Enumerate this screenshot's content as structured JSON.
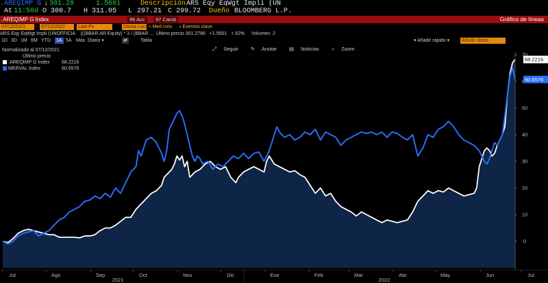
{
  "header": {
    "ticker_left": ".AREQIMP G",
    "price_arrow": "↓",
    "price": "301.28",
    "change": "1.5601",
    "desc_label": "Descripción",
    "desc_value": "ARS Eqy EqWgt Impli (UN",
    "at_label": "At",
    "at_time": "11:50d",
    "o_label": "O",
    "o_value": "300.7",
    "h_label": "H",
    "h_value": "311.05",
    "l_label": "L",
    "l_value": "297.21",
    "c_label": "C",
    "c_value": "299.72",
    "owner_label": "Dueño",
    "owner_value": "BLOOMBERG L.P."
  },
  "security_bar": {
    "security": ".AREQIMP G Index",
    "btn1": "96 Acc",
    "btn2": "97 Camb",
    "title": "Gráfico de líneas"
  },
  "fields_row": {
    "start_date": "07/12/2021",
    "end_date": "07/12/2022",
    "last_px": "Last Px",
    "currency": "Divisa Local",
    "med_mov": "Med móv",
    "events": "Eventos clave"
  },
  "info_row": {
    "text": "ARS Eqy EqWgt Impli (UNOFFICIA    (((BBAR AR Equity) * 3 / (BBAR ...  Último precio 301.2786   +1.5601   +.52%     Volumen  2"
  },
  "period_row": {
    "periods": [
      "1D",
      "3D",
      "1M",
      "6M",
      "YTD",
      "1A",
      "5A",
      "Máx",
      "Diario"
    ],
    "active": "1A",
    "tabla": "Tabla",
    "add_quick": "Añadir rápido",
    "add_data": "Añadir datos"
  },
  "toolbar": {
    "follow": "Seguir",
    "annotate": "Anotar",
    "news": "Noticias",
    "zoom": "Zoom"
  },
  "legend": {
    "normalized": "Normalizado al 07/12/2021",
    "last_price": "Último precio",
    "items": [
      {
        "name": ".AREQIMP G Index",
        "value": "68.2216",
        "color": "#ffffff"
      },
      {
        "name": "MERVAL Index",
        "value": "60.6576",
        "color": "#2a6cf6"
      }
    ]
  },
  "colors": {
    "accent_orange": "#e48a0c",
    "bar_red": "#9b0d0d",
    "series_white": "#ffffff",
    "series_blue": "#2a6cf6",
    "area_fill": "#0e2547"
  },
  "chart_data": {
    "type": "line",
    "ylim": [
      -10,
      70
    ],
    "yticks": [
      0,
      10,
      20,
      30,
      40,
      50,
      60,
      70
    ],
    "xlim": [
      0,
      1
    ],
    "month_labels": [
      {
        "label": "Jul",
        "x": 0.0
      },
      {
        "label": "Ago",
        "x": 0.085
      },
      {
        "label": "Sep",
        "x": 0.172
      },
      {
        "label": "Oct",
        "x": 0.255
      },
      {
        "label": "Nov",
        "x": 0.342
      },
      {
        "label": "Dic",
        "x": 0.426
      },
      {
        "label": "Ene",
        "x": 0.512
      },
      {
        "label": "Feb",
        "x": 0.598
      },
      {
        "label": "Mar",
        "x": 0.676
      },
      {
        "label": "Abr",
        "x": 0.762
      },
      {
        "label": "May",
        "x": 0.845
      },
      {
        "label": "Jun",
        "x": 0.932
      },
      {
        "label": "Jul",
        "x": 1.012
      }
    ],
    "year_labels": [
      {
        "label": "2021",
        "x": 0.23
      },
      {
        "label": "2022",
        "x": 0.75
      }
    ],
    "series": [
      {
        "name": ".AREQIMP G Index",
        "color": "#ffffff",
        "area": true,
        "last_value": "68.2216",
        "points": [
          [
            0.0,
            0
          ],
          [
            0.01,
            -0.5
          ],
          [
            0.02,
            1
          ],
          [
            0.03,
            3
          ],
          [
            0.04,
            4
          ],
          [
            0.05,
            4.5
          ],
          [
            0.06,
            4
          ],
          [
            0.07,
            3.5
          ],
          [
            0.08,
            3
          ],
          [
            0.09,
            2.5
          ],
          [
            0.1,
            2.5
          ],
          [
            0.11,
            1.5
          ],
          [
            0.12,
            1.5
          ],
          [
            0.13,
            1.5
          ],
          [
            0.14,
            1.5
          ],
          [
            0.15,
            1.3
          ],
          [
            0.16,
            2
          ],
          [
            0.17,
            2
          ],
          [
            0.18,
            2.5
          ],
          [
            0.19,
            4
          ],
          [
            0.2,
            5
          ],
          [
            0.21,
            5
          ],
          [
            0.22,
            6
          ],
          [
            0.23,
            7.5
          ],
          [
            0.24,
            9
          ],
          [
            0.25,
            9
          ],
          [
            0.26,
            12
          ],
          [
            0.27,
            14
          ],
          [
            0.28,
            16
          ],
          [
            0.29,
            18
          ],
          [
            0.3,
            19
          ],
          [
            0.31,
            21
          ],
          [
            0.315,
            24
          ],
          [
            0.32,
            25
          ],
          [
            0.325,
            26
          ],
          [
            0.33,
            27
          ],
          [
            0.335,
            29
          ],
          [
            0.34,
            32
          ],
          [
            0.345,
            30.5
          ],
          [
            0.35,
            32
          ],
          [
            0.355,
            28
          ],
          [
            0.36,
            30
          ],
          [
            0.365,
            24
          ],
          [
            0.37,
            25
          ],
          [
            0.375,
            26
          ],
          [
            0.385,
            27
          ],
          [
            0.395,
            29
          ],
          [
            0.405,
            30
          ],
          [
            0.415,
            28
          ],
          [
            0.425,
            27
          ],
          [
            0.435,
            28
          ],
          [
            0.445,
            24
          ],
          [
            0.455,
            22
          ],
          [
            0.46,
            24
          ],
          [
            0.47,
            26
          ],
          [
            0.48,
            27
          ],
          [
            0.49,
            28
          ],
          [
            0.5,
            27
          ],
          [
            0.51,
            26
          ],
          [
            0.515,
            30
          ],
          [
            0.52,
            32
          ],
          [
            0.53,
            29
          ],
          [
            0.54,
            28
          ],
          [
            0.55,
            27
          ],
          [
            0.56,
            26
          ],
          [
            0.57,
            26.5
          ],
          [
            0.58,
            25
          ],
          [
            0.59,
            24
          ],
          [
            0.6,
            21
          ],
          [
            0.61,
            18
          ],
          [
            0.62,
            20
          ],
          [
            0.63,
            17
          ],
          [
            0.64,
            18
          ],
          [
            0.65,
            15
          ],
          [
            0.66,
            13
          ],
          [
            0.67,
            12
          ],
          [
            0.68,
            11
          ],
          [
            0.69,
            9.5
          ],
          [
            0.7,
            11
          ],
          [
            0.71,
            10
          ],
          [
            0.72,
            9
          ],
          [
            0.73,
            8
          ],
          [
            0.74,
            7
          ],
          [
            0.75,
            8
          ],
          [
            0.76,
            7.5
          ],
          [
            0.77,
            7
          ],
          [
            0.78,
            7.5
          ],
          [
            0.79,
            8
          ],
          [
            0.8,
            11
          ],
          [
            0.81,
            15
          ],
          [
            0.82,
            17
          ],
          [
            0.83,
            19
          ],
          [
            0.84,
            18
          ],
          [
            0.85,
            19
          ],
          [
            0.86,
            18.5
          ],
          [
            0.87,
            20
          ],
          [
            0.88,
            19
          ],
          [
            0.89,
            18
          ],
          [
            0.9,
            17
          ],
          [
            0.91,
            17.5
          ],
          [
            0.92,
            18
          ],
          [
            0.925,
            20
          ],
          [
            0.93,
            28
          ],
          [
            0.935,
            31
          ],
          [
            0.94,
            34
          ],
          [
            0.945,
            35
          ],
          [
            0.95,
            34
          ],
          [
            0.955,
            32
          ],
          [
            0.96,
            33
          ],
          [
            0.965,
            36
          ],
          [
            0.97,
            38
          ],
          [
            0.975,
            40
          ],
          [
            0.98,
            43
          ],
          [
            0.985,
            55
          ],
          [
            0.99,
            63
          ],
          [
            0.995,
            67
          ],
          [
            1.0,
            68.2
          ]
        ]
      },
      {
        "name": "MERVAL Index",
        "color": "#2a6cf6",
        "area": false,
        "last_value": "60.6576",
        "points": [
          [
            0.0,
            0
          ],
          [
            0.01,
            -1
          ],
          [
            0.02,
            0
          ],
          [
            0.03,
            2
          ],
          [
            0.04,
            3
          ],
          [
            0.05,
            3.5
          ],
          [
            0.06,
            4
          ],
          [
            0.07,
            2
          ],
          [
            0.08,
            3
          ],
          [
            0.09,
            4
          ],
          [
            0.1,
            6
          ],
          [
            0.11,
            8
          ],
          [
            0.12,
            9
          ],
          [
            0.13,
            11
          ],
          [
            0.14,
            12
          ],
          [
            0.15,
            13
          ],
          [
            0.16,
            15
          ],
          [
            0.17,
            15.5
          ],
          [
            0.18,
            17
          ],
          [
            0.19,
            16
          ],
          [
            0.2,
            18
          ],
          [
            0.21,
            16.5
          ],
          [
            0.22,
            20
          ],
          [
            0.23,
            18
          ],
          [
            0.24,
            22
          ],
          [
            0.25,
            26
          ],
          [
            0.26,
            28
          ],
          [
            0.265,
            34
          ],
          [
            0.27,
            32
          ],
          [
            0.28,
            38
          ],
          [
            0.29,
            39
          ],
          [
            0.3,
            37
          ],
          [
            0.31,
            33
          ],
          [
            0.315,
            30
          ],
          [
            0.32,
            34
          ],
          [
            0.325,
            42
          ],
          [
            0.33,
            44
          ],
          [
            0.335,
            46
          ],
          [
            0.34,
            48
          ],
          [
            0.345,
            49
          ],
          [
            0.35,
            47
          ],
          [
            0.355,
            44
          ],
          [
            0.36,
            40
          ],
          [
            0.365,
            36
          ],
          [
            0.37,
            32
          ],
          [
            0.375,
            30
          ],
          [
            0.38,
            32
          ],
          [
            0.385,
            31
          ],
          [
            0.39,
            29
          ],
          [
            0.4,
            30
          ],
          [
            0.41,
            27
          ],
          [
            0.42,
            29
          ],
          [
            0.43,
            28
          ],
          [
            0.44,
            30
          ],
          [
            0.45,
            32
          ],
          [
            0.46,
            31
          ],
          [
            0.47,
            33
          ],
          [
            0.48,
            31
          ],
          [
            0.49,
            33
          ],
          [
            0.5,
            33.5
          ],
          [
            0.51,
            30
          ],
          [
            0.52,
            34
          ],
          [
            0.53,
            40
          ],
          [
            0.535,
            43
          ],
          [
            0.54,
            41
          ],
          [
            0.55,
            39
          ],
          [
            0.56,
            40
          ],
          [
            0.57,
            38
          ],
          [
            0.58,
            39
          ],
          [
            0.59,
            41
          ],
          [
            0.6,
            40
          ],
          [
            0.61,
            42
          ],
          [
            0.62,
            38
          ],
          [
            0.63,
            41
          ],
          [
            0.64,
            40
          ],
          [
            0.65,
            39
          ],
          [
            0.66,
            36
          ],
          [
            0.67,
            38
          ],
          [
            0.68,
            39
          ],
          [
            0.69,
            40
          ],
          [
            0.7,
            41
          ],
          [
            0.71,
            40.5
          ],
          [
            0.72,
            41
          ],
          [
            0.73,
            40
          ],
          [
            0.74,
            41
          ],
          [
            0.75,
            39
          ],
          [
            0.76,
            41
          ],
          [
            0.77,
            40.5
          ],
          [
            0.78,
            39
          ],
          [
            0.79,
            38
          ],
          [
            0.8,
            40
          ],
          [
            0.81,
            32
          ],
          [
            0.82,
            35
          ],
          [
            0.83,
            40
          ],
          [
            0.84,
            39
          ],
          [
            0.85,
            42
          ],
          [
            0.86,
            43
          ],
          [
            0.87,
            45
          ],
          [
            0.88,
            43
          ],
          [
            0.89,
            40
          ],
          [
            0.9,
            38
          ],
          [
            0.91,
            37
          ],
          [
            0.92,
            36
          ],
          [
            0.93,
            34
          ],
          [
            0.935,
            32
          ],
          [
            0.94,
            30
          ],
          [
            0.945,
            29
          ],
          [
            0.95,
            31
          ],
          [
            0.955,
            34
          ],
          [
            0.96,
            37
          ],
          [
            0.965,
            36
          ],
          [
            0.97,
            38
          ],
          [
            0.975,
            40
          ],
          [
            0.98,
            47
          ],
          [
            0.985,
            55
          ],
          [
            0.99,
            62
          ],
          [
            0.995,
            65
          ],
          [
            1.0,
            60.7
          ]
        ]
      }
    ]
  }
}
